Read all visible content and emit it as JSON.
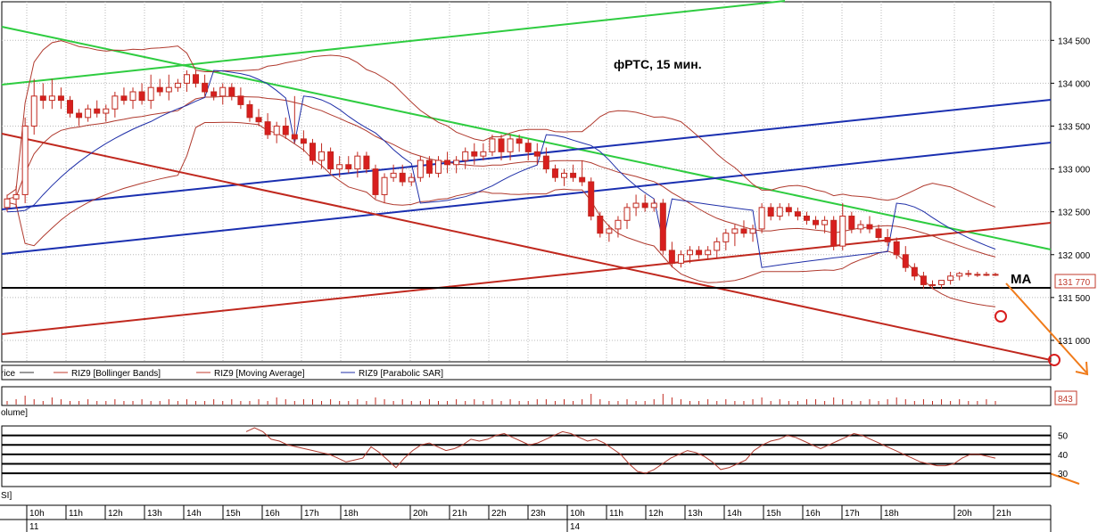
{
  "chart_data": {
    "type": "candlestick",
    "title": "фРТС,  15 мин.",
    "last_price_label": "131 770",
    "ma_annotation": "MA",
    "volume_value_label": "843",
    "legend": [
      {
        "label": "rice",
        "color": "#333333"
      },
      {
        "label": "RIZ9 [Bollinger Bands]",
        "color": "#c0392b"
      },
      {
        "label": "RIZ9 [Moving Average]",
        "color": "#c0392b"
      },
      {
        "label": "RIZ9 [Parabolic SAR]",
        "color": "#1f2fa8"
      }
    ],
    "volume_panel_label": "olume]",
    "rsi_panel_label": "SI]",
    "price_ylim": [
      130750,
      134950
    ],
    "price_ticks": [
      "134 500",
      "134 000",
      "133 500",
      "133 000",
      "132 500",
      "132 000",
      "131 500",
      "131 000"
    ],
    "price_tick_values": [
      134500,
      134000,
      133500,
      133000,
      132500,
      132000,
      131500,
      131000
    ],
    "rsi_ylim": [
      23,
      55
    ],
    "rsi_ticks": [
      "50",
      "40",
      "30"
    ],
    "rsi_tick_values": [
      50,
      40,
      30
    ],
    "rsi_levels": [
      50,
      45,
      40,
      35,
      30
    ],
    "time_labels": [
      "10h",
      "11h",
      "12h",
      "13h",
      "14h",
      "15h",
      "16h",
      "17h",
      "18h",
      "20h",
      "21h",
      "22h",
      "23h",
      "10h",
      "11h",
      "12h",
      "13h",
      "14h",
      "15h",
      "16h",
      "17h",
      "18h",
      "20h",
      "21h"
    ],
    "date_labels": [
      "11",
      "14"
    ],
    "candles": [
      [
        132550,
        132700,
        132500,
        132650
      ],
      [
        132650,
        132800,
        132550,
        132700
      ],
      [
        132700,
        133600,
        132600,
        133500
      ],
      [
        133500,
        134050,
        133400,
        133850
      ],
      [
        133850,
        134000,
        133700,
        133800
      ],
      [
        133800,
        134050,
        133700,
        133850
      ],
      [
        133850,
        133950,
        133700,
        133800
      ],
      [
        133800,
        133850,
        133600,
        133650
      ],
      [
        133650,
        133700,
        133500,
        133600
      ],
      [
        133600,
        133750,
        133550,
        133700
      ],
      [
        133700,
        133800,
        133600,
        133650
      ],
      [
        133650,
        133750,
        133550,
        133700
      ],
      [
        133700,
        133900,
        133600,
        133850
      ],
      [
        133850,
        133950,
        133750,
        133800
      ],
      [
        133800,
        133950,
        133700,
        133900
      ],
      [
        133900,
        134000,
        133750,
        133800
      ],
      [
        133800,
        134100,
        133700,
        133950
      ],
      [
        133950,
        134050,
        133850,
        133900
      ],
      [
        133900,
        134100,
        133800,
        133950
      ],
      [
        133950,
        134050,
        133900,
        134000
      ],
      [
        134000,
        134150,
        133900,
        134100
      ],
      [
        134100,
        134150,
        133950,
        134000
      ],
      [
        134000,
        134100,
        133850,
        133900
      ],
      [
        133900,
        133950,
        133800,
        133850
      ],
      [
        133850,
        134000,
        133750,
        133950
      ],
      [
        133950,
        134000,
        133800,
        133850
      ],
      [
        133850,
        133950,
        133700,
        133750
      ],
      [
        133750,
        133800,
        133550,
        133600
      ],
      [
        133600,
        133700,
        133500,
        133550
      ],
      [
        133550,
        133650,
        133350,
        133400
      ],
      [
        133400,
        133550,
        133300,
        133500
      ],
      [
        133500,
        133600,
        133350,
        133400
      ],
      [
        133400,
        133850,
        133300,
        133350
      ],
      [
        133350,
        133450,
        133200,
        133300
      ],
      [
        133300,
        133350,
        133050,
        133100
      ],
      [
        133100,
        133300,
        133000,
        133200
      ],
      [
        133200,
        133250,
        132950,
        133000
      ],
      [
        133000,
        133150,
        132900,
        133050
      ],
      [
        133050,
        133150,
        132950,
        133000
      ],
      [
        133000,
        133200,
        132900,
        133150
      ],
      [
        133150,
        133200,
        132950,
        133000
      ],
      [
        133000,
        133050,
        132650,
        132700
      ],
      [
        132700,
        132950,
        132600,
        132900
      ],
      [
        132900,
        133050,
        132850,
        132950
      ],
      [
        132950,
        133050,
        132800,
        132850
      ],
      [
        132850,
        132950,
        132800,
        132900
      ],
      [
        132900,
        133150,
        132850,
        133100
      ],
      [
        133100,
        133150,
        132900,
        132950
      ],
      [
        132950,
        133150,
        132900,
        133100
      ],
      [
        133100,
        133200,
        132950,
        133050
      ],
      [
        133050,
        133150,
        132950,
        133100
      ],
      [
        133100,
        133250,
        133000,
        133200
      ],
      [
        133200,
        133300,
        133050,
        133150
      ],
      [
        133150,
        133300,
        133100,
        133200
      ],
      [
        133200,
        133400,
        133150,
        133350
      ],
      [
        133350,
        133400,
        133100,
        133200
      ],
      [
        133200,
        133400,
        133100,
        133350
      ],
      [
        133350,
        133400,
        133200,
        133300
      ],
      [
        133300,
        133350,
        133100,
        133200
      ],
      [
        133200,
        133300,
        133050,
        133150
      ],
      [
        133150,
        133250,
        132950,
        133000
      ],
      [
        133000,
        133050,
        132850,
        132900
      ],
      [
        132900,
        133000,
        132800,
        132950
      ],
      [
        132950,
        133050,
        132850,
        132900
      ],
      [
        132900,
        133100,
        132800,
        132850
      ],
      [
        132850,
        132900,
        132400,
        132450
      ],
      [
        132450,
        132500,
        132200,
        132250
      ],
      [
        132250,
        132350,
        132150,
        132300
      ],
      [
        132300,
        132450,
        132200,
        132400
      ],
      [
        132400,
        132600,
        132300,
        132550
      ],
      [
        132550,
        132700,
        132450,
        132600
      ],
      [
        132600,
        132700,
        132500,
        132550
      ],
      [
        132550,
        132650,
        132500,
        132600
      ],
      [
        132600,
        132650,
        132000,
        132050
      ],
      [
        132050,
        132150,
        131850,
        131900
      ],
      [
        131900,
        132050,
        131850,
        132000
      ],
      [
        132000,
        132100,
        131900,
        132050
      ],
      [
        132050,
        132100,
        131950,
        132000
      ],
      [
        132000,
        132100,
        131950,
        132050
      ],
      [
        132050,
        132200,
        131950,
        132150
      ],
      [
        132150,
        132300,
        132050,
        132250
      ],
      [
        132250,
        132350,
        132100,
        132300
      ],
      [
        132300,
        132400,
        132200,
        132250
      ],
      [
        132250,
        132350,
        132150,
        132300
      ],
      [
        132300,
        132600,
        132250,
        132550
      ],
      [
        132550,
        132600,
        132400,
        132450
      ],
      [
        132450,
        132600,
        132400,
        132550
      ],
      [
        132550,
        132600,
        132450,
        132500
      ],
      [
        132500,
        132550,
        132400,
        132450
      ],
      [
        132450,
        132500,
        132350,
        132400
      ],
      [
        132400,
        132450,
        132300,
        132350
      ],
      [
        132350,
        132450,
        132250,
        132400
      ],
      [
        132400,
        132450,
        132050,
        132100
      ],
      [
        132100,
        132600,
        132050,
        132450
      ],
      [
        132450,
        132500,
        132250,
        132300
      ],
      [
        132300,
        132400,
        132250,
        132350
      ],
      [
        132350,
        132450,
        132250,
        132300
      ],
      [
        132300,
        132350,
        132150,
        132200
      ],
      [
        132200,
        132300,
        132100,
        132150
      ],
      [
        132150,
        132200,
        131950,
        132000
      ],
      [
        132000,
        132100,
        131800,
        131850
      ],
      [
        131850,
        131900,
        131700,
        131750
      ],
      [
        131750,
        131800,
        131600,
        131650
      ],
      [
        131650,
        131700,
        131600,
        131650
      ],
      [
        131650,
        131700,
        131600,
        131700
      ],
      [
        131700,
        131800,
        131650,
        131750
      ],
      [
        131750,
        131800,
        131700,
        131780
      ],
      [
        131780,
        131820,
        131740,
        131770
      ],
      [
        131770,
        131800,
        131740,
        131770
      ],
      [
        131770,
        131800,
        131750,
        131770
      ],
      [
        131770,
        131790,
        131750,
        131770
      ]
    ],
    "volume_bars": [
      2,
      3,
      5,
      3,
      2,
      4,
      3,
      2,
      2,
      3,
      2,
      2,
      3,
      2,
      2,
      3,
      2,
      2,
      3,
      2,
      3,
      2,
      2,
      3,
      2,
      3,
      2,
      2,
      3,
      2,
      4,
      3,
      2,
      3,
      3,
      2,
      3,
      2,
      2,
      3,
      2,
      4,
      3,
      2,
      3,
      2,
      2,
      3,
      2,
      2,
      3,
      2,
      3,
      2,
      3,
      2,
      3,
      2,
      2,
      3,
      3,
      2,
      3,
      2,
      3,
      6,
      3,
      2,
      2,
      3,
      2,
      2,
      3,
      6,
      4,
      3,
      2,
      2,
      3,
      2,
      3,
      2,
      2,
      3,
      4,
      2,
      3,
      2,
      2,
      3,
      3,
      2,
      4,
      3,
      2,
      2,
      3,
      2,
      3,
      4,
      3,
      2,
      3,
      2,
      3,
      2,
      3,
      2,
      2,
      3,
      2
    ],
    "rsi_series": [
      {
        "name": "RSI",
        "color": "#b03a2e",
        "values": [
          52,
          54,
          52,
          48,
          47,
          45,
          44,
          43,
          42,
          41,
          40,
          38,
          36,
          37,
          38,
          44,
          41,
          37,
          33,
          38,
          42,
          45,
          46,
          44,
          42,
          43,
          45,
          48,
          47,
          48,
          50,
          51,
          49,
          47,
          45,
          46,
          48,
          50,
          52,
          51,
          49,
          47,
          48,
          46,
          43,
          40,
          35,
          31,
          30,
          32,
          35,
          38,
          40,
          42,
          41,
          39,
          36,
          32,
          33,
          35,
          37,
          42,
          45,
          47,
          48,
          50,
          49,
          47,
          45,
          43,
          45,
          47,
          49,
          51,
          50,
          48,
          46,
          44,
          42,
          40,
          38,
          36,
          35,
          34,
          34,
          35,
          38,
          40,
          40,
          39,
          38
        ]
      }
    ]
  }
}
